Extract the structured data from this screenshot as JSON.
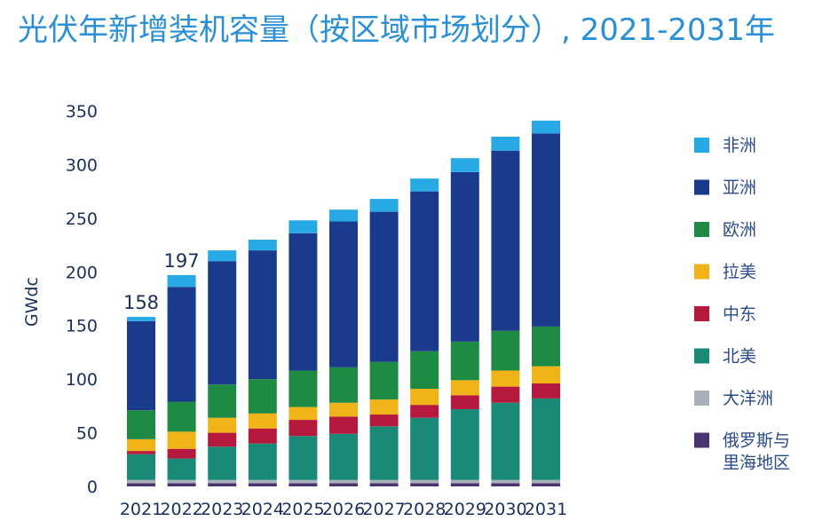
{
  "chart_data": {
    "type": "bar",
    "stacked": true,
    "title": "光伏年新增装机容量（按区域市场划分）, 2021-2031年",
    "xlabel": "",
    "ylabel": "GWdc",
    "ylim": [
      0,
      350
    ],
    "yticks": [
      0,
      50,
      100,
      150,
      200,
      250,
      300,
      350
    ],
    "grid": false,
    "legend_position": "right",
    "categories": [
      "2021",
      "2022",
      "2023",
      "2024",
      "2025",
      "2026",
      "2027",
      "2028",
      "2029",
      "2030",
      "2031"
    ],
    "totals_labels": [
      {
        "category": "2021",
        "text": "158"
      },
      {
        "category": "2022",
        "text": "197"
      }
    ],
    "series": [
      {
        "name": "俄罗斯与里海地区",
        "color": "#4a3470",
        "values": [
          3,
          3,
          3,
          3,
          3,
          3,
          3,
          3,
          3,
          3,
          3
        ]
      },
      {
        "name": "大洋洲",
        "color": "#a9b1b9",
        "values": [
          3,
          3,
          3,
          3,
          3,
          3,
          3,
          3,
          3,
          3,
          3
        ]
      },
      {
        "name": "北美",
        "color": "#1a8a78",
        "values": [
          24,
          20,
          31,
          34,
          41,
          43,
          50,
          58,
          66,
          72,
          76
        ]
      },
      {
        "name": "中东",
        "color": "#b5193d",
        "values": [
          3,
          9,
          13,
          14,
          15,
          16,
          11,
          12,
          13,
          15,
          14
        ]
      },
      {
        "name": "拉美",
        "color": "#f0b418",
        "values": [
          11,
          16,
          14,
          14,
          12,
          13,
          14,
          15,
          14,
          15,
          16
        ]
      },
      {
        "name": "欧洲",
        "color": "#1e8a44",
        "values": [
          27,
          28,
          31,
          32,
          34,
          33,
          35,
          35,
          36,
          37,
          37
        ]
      },
      {
        "name": "亚洲",
        "color": "#1a3a8c",
        "values": [
          83,
          107,
          115,
          120,
          128,
          136,
          140,
          149,
          158,
          168,
          180
        ]
      },
      {
        "name": "非洲",
        "color": "#27a9e6",
        "values": [
          4,
          11,
          10,
          10,
          12,
          11,
          12,
          12,
          13,
          13,
          12
        ]
      }
    ],
    "legend_order": [
      "非洲",
      "亚洲",
      "欧洲",
      "拉美",
      "中东",
      "北美",
      "大洋洲",
      "俄罗斯与里海地区"
    ],
    "legend_lines": {
      "俄罗斯与里海地区": [
        "俄罗斯与",
        "里海地区"
      ]
    }
  }
}
